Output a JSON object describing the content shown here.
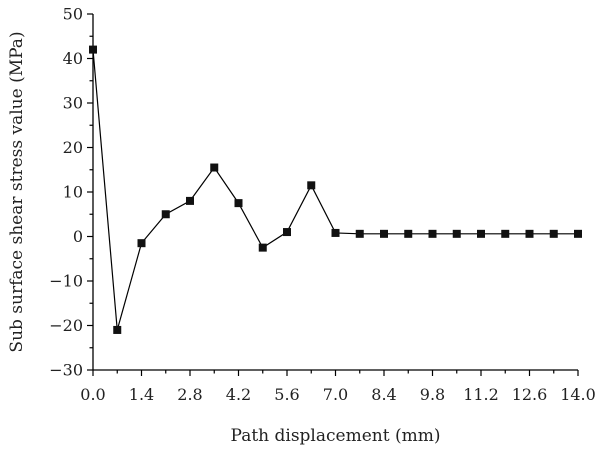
{
  "chart_data": {
    "type": "line",
    "title": "",
    "xlabel": "Path displacement (mm)",
    "ylabel": "Sub surface shear stress value (MPa)",
    "xlim": [
      0,
      14
    ],
    "ylim": [
      -30,
      50
    ],
    "x_ticks": [
      "0.0",
      "1.4",
      "2.8",
      "4.2",
      "5.6",
      "7.0",
      "8.4",
      "9.8",
      "11.2",
      "12.6",
      "14.0"
    ],
    "y_ticks": [
      "−30",
      "−20",
      "−10",
      "0",
      "10",
      "20",
      "30",
      "40",
      "50"
    ],
    "grid": false,
    "marker": "square",
    "series": [
      {
        "x": [
          0.0,
          0.7,
          1.4,
          2.1,
          2.8,
          3.5,
          4.2,
          4.9,
          5.6,
          6.3,
          7.0,
          7.7,
          8.4,
          9.1,
          9.8,
          10.5,
          11.2,
          11.9,
          12.6,
          13.3,
          14.0
        ],
        "y": [
          42,
          -21,
          -1.5,
          5,
          8,
          15.5,
          7.5,
          -2.5,
          1,
          11.5,
          0.8,
          0.6,
          0.6,
          0.6,
          0.6,
          0.6,
          0.6,
          0.6,
          0.6,
          0.6,
          0.6
        ]
      }
    ]
  }
}
